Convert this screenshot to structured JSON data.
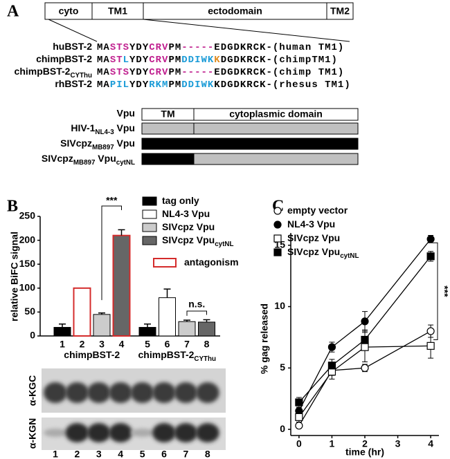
{
  "panels": [
    "A",
    "B",
    "C"
  ],
  "domain_map": {
    "segments": [
      "cyto",
      "TM1",
      "ectodomain",
      "TM2"
    ]
  },
  "sequences": [
    {
      "name": [
        {
          "text": "huBST-2"
        }
      ],
      "parts": [
        {
          "text": "MA",
          "color": "#000000"
        },
        {
          "text": "STS",
          "color": "#c0208f"
        },
        {
          "text": "YDY",
          "color": "#000000"
        },
        {
          "text": "CRV",
          "color": "#c0208f"
        },
        {
          "text": "PM",
          "color": "#000000"
        },
        {
          "text": "-----",
          "color": "#c0208f"
        },
        {
          "text": "EDGDKRCK-(human TM1)",
          "color": "#000000"
        }
      ]
    },
    {
      "name": [
        {
          "text": "chimpBST-2"
        }
      ],
      "parts": [
        {
          "text": "MA",
          "color": "#000000"
        },
        {
          "text": "ST",
          "color": "#c0208f"
        },
        {
          "text": "L",
          "color": "#1a9bd7"
        },
        {
          "text": "YDY",
          "color": "#000000"
        },
        {
          "text": "CRV",
          "color": "#c0208f"
        },
        {
          "text": "PM",
          "color": "#000000"
        },
        {
          "text": "DDIWK",
          "color": "#1a9bd7"
        },
        {
          "text": "K",
          "color": "#e08a1e"
        },
        {
          "text": "DGDKRCK-(chimpTM1)",
          "color": "#000000"
        }
      ]
    },
    {
      "name": [
        {
          "text": "chimpBST-2"
        },
        {
          "text": "CYThu",
          "sub": true
        }
      ],
      "parts": [
        {
          "text": "MA",
          "color": "#000000"
        },
        {
          "text": "STS",
          "color": "#c0208f"
        },
        {
          "text": "YDY",
          "color": "#000000"
        },
        {
          "text": "CRV",
          "color": "#c0208f"
        },
        {
          "text": "PM",
          "color": "#000000"
        },
        {
          "text": "-----",
          "color": "#c0208f"
        },
        {
          "text": "EDGDKRCK-(chimp TM1)",
          "color": "#000000"
        }
      ]
    },
    {
      "name": [
        {
          "text": "rhBST-2"
        }
      ],
      "parts": [
        {
          "text": "MA",
          "color": "#000000"
        },
        {
          "text": "PIL",
          "color": "#1a9bd7"
        },
        {
          "text": "YDY",
          "color": "#000000"
        },
        {
          "text": "RKM",
          "color": "#1a9bd7"
        },
        {
          "text": "PM",
          "color": "#000000"
        },
        {
          "text": "DDIWK",
          "color": "#1a9bd7"
        },
        {
          "text": "KDGDKRCK-(rhesus TM1)",
          "color": "#000000"
        }
      ]
    }
  ],
  "vpu_constructs": {
    "header": "Vpu",
    "columns": [
      "TM",
      "cytoplasmic domain"
    ],
    "rows": [
      {
        "label": [
          {
            "text": "HIV-1"
          },
          {
            "text": "NL4-3",
            "sub": true
          },
          {
            "text": " Vpu"
          }
        ],
        "tm_color": "#c0c0c0",
        "cyto_color": "#c0c0c0"
      },
      {
        "label": [
          {
            "text": "SIVcpz"
          },
          {
            "text": "MB897",
            "sub": true
          },
          {
            "text": " Vpu"
          }
        ],
        "tm_color": "#000000",
        "cyto_color": "#000000"
      },
      {
        "label": [
          {
            "text": "SIVcpz"
          },
          {
            "text": "MB897",
            "sub": true
          },
          {
            "text": " Vpu"
          },
          {
            "text": "cytNL",
            "sub": true
          }
        ],
        "tm_color": "#000000",
        "cyto_color": "#c0c0c0"
      }
    ]
  },
  "chart_data": [
    {
      "type": "bar",
      "y_label": "relative BiFC signal",
      "categories": [
        "1",
        "2",
        "3",
        "4",
        "5",
        "6",
        "7",
        "8"
      ],
      "values": [
        18,
        100,
        45,
        210,
        18,
        80,
        30,
        29
      ],
      "errors": [
        7,
        null,
        3,
        12,
        7,
        18,
        3,
        5
      ],
      "colors": [
        "#000000",
        "#ffffff",
        "#cccccc",
        "#666666",
        "#000000",
        "#ffffff",
        "#cccccc",
        "#666666"
      ],
      "edge_colors": [
        "#000000",
        "#d42b2b",
        "#000000",
        "#d42b2b",
        "#000000",
        "#000000",
        "#000000",
        "#000000"
      ],
      "ylim": [
        0,
        250
      ],
      "yticks": [
        0,
        50,
        100,
        150,
        200,
        250
      ],
      "groups": [
        [
          {
            "text": "chimpBST-2"
          }
        ],
        [
          {
            "text": "chimpBST-2"
          },
          {
            "text": "CYThu",
            "sub": true
          }
        ]
      ],
      "legend": [
        {
          "name": [
            {
              "text": "tag only"
            }
          ],
          "color": "#000000",
          "edge_color": "#000000"
        },
        {
          "name": [
            {
              "text": "NL4-3 Vpu"
            }
          ],
          "color": "#ffffff",
          "edge_color": "#000000"
        },
        {
          "name": [
            {
              "text": "SIVcpz Vpu"
            }
          ],
          "color": "#cccccc",
          "edge_color": "#000000"
        },
        {
          "name": [
            {
              "text": "SIVcpz Vpu"
            },
            {
              "text": "cytNL",
              "sub": true
            }
          ],
          "color": "#666666",
          "edge_color": "#000000"
        },
        {
          "name": [
            {
              "text": "antagonism"
            }
          ],
          "color": "#ffffff",
          "edge_color": "#d42b2b"
        }
      ],
      "annotations": [
        "***",
        "n.s."
      ]
    },
    {
      "type": "line",
      "x_label": "time (hr)",
      "y_label": "% gag released",
      "x": [
        0,
        1,
        2,
        4
      ],
      "xlim": [
        -0.25,
        4.25
      ],
      "xticks": [
        0,
        1,
        2,
        3,
        4
      ],
      "ylim": [
        -0.5,
        16
      ],
      "yticks": [
        0,
        5,
        10,
        15
      ],
      "series": [
        {
          "name": [
            {
              "text": "empty vector"
            }
          ],
          "color": "#000000",
          "marker": "circle",
          "filled": false,
          "values": [
            0.3,
            4.8,
            5.0,
            8.0
          ],
          "errors": [
            0.2,
            0.4,
            0.3,
            0.5
          ]
        },
        {
          "name": [
            {
              "text": "NL4-3 Vpu"
            }
          ],
          "color": "#000000",
          "marker": "circle",
          "filled": true,
          "values": [
            1.5,
            6.7,
            8.8,
            15.5
          ],
          "errors": [
            0.3,
            0.4,
            0.8,
            0.3
          ]
        },
        {
          "name": [
            {
              "text": "SIVcpz Vpu"
            }
          ],
          "color": "#000000",
          "marker": "square",
          "filled": false,
          "values": [
            1.0,
            4.7,
            6.7,
            6.8
          ],
          "errors": [
            0.4,
            0.6,
            1.2,
            1.0
          ]
        },
        {
          "name": [
            {
              "text": "SIVcpz Vpu"
            },
            {
              "text": "cytNL",
              "sub": true
            }
          ],
          "color": "#000000",
          "marker": "square",
          "filled": true,
          "values": [
            2.2,
            5.2,
            7.3,
            14.1
          ],
          "errors": [
            0.4,
            0.5,
            0.8,
            0.4
          ]
        }
      ],
      "annotations": [
        "***"
      ]
    }
  ],
  "blot": {
    "antibodies": [
      "α-KGC",
      "α-KGN"
    ]
  }
}
